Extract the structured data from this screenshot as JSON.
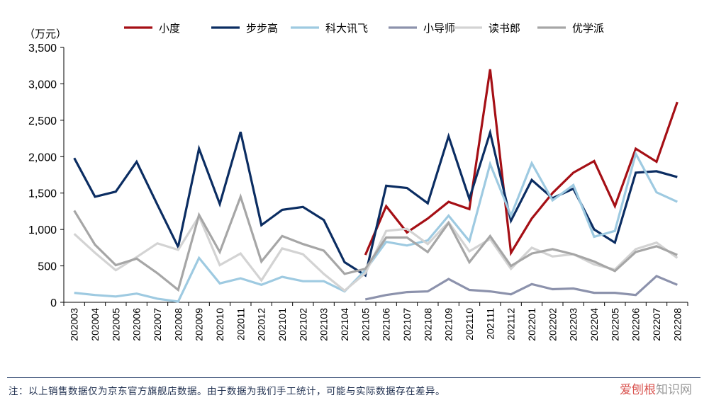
{
  "chart_data": {
    "type": "line",
    "unit_label": "（万元）",
    "ylim": [
      0,
      3500
    ],
    "yticks": [
      "0",
      "500",
      "1,000",
      "1,500",
      "2,000",
      "2,500",
      "3,000",
      "3,500"
    ],
    "ytick_values": [
      0,
      500,
      1000,
      1500,
      2000,
      2500,
      3000,
      3500
    ],
    "grid": false,
    "legend_position": "top",
    "categories": [
      "202003",
      "202004",
      "202005",
      "202006",
      "202007",
      "202008",
      "202009",
      "202010",
      "202011",
      "202012",
      "202101",
      "202102",
      "202103",
      "202104",
      "202105",
      "202106",
      "202107",
      "202108",
      "202109",
      "202110",
      "202111",
      "202112",
      "202201",
      "202202",
      "202203",
      "202204",
      "202205",
      "202206",
      "202207",
      "202208"
    ],
    "series": [
      {
        "name": "小度",
        "color": "#a50f15",
        "values": [
          null,
          null,
          null,
          null,
          null,
          null,
          null,
          null,
          null,
          null,
          null,
          null,
          null,
          null,
          650,
          1320,
          960,
          1150,
          1380,
          1280,
          3200,
          680,
          1150,
          1500,
          1780,
          1940,
          1320,
          2110,
          1930,
          2750
        ]
      },
      {
        "name": "步步高",
        "color": "#0b2d62",
        "values": [
          1980,
          1450,
          1520,
          1930,
          1340,
          760,
          2110,
          1350,
          2340,
          1060,
          1270,
          1310,
          1130,
          550,
          370,
          1600,
          1570,
          1360,
          2280,
          1420,
          2330,
          1120,
          1680,
          1430,
          1560,
          1000,
          820,
          1780,
          1800,
          1720
        ]
      },
      {
        "name": "科大讯飞",
        "color": "#9ecae1",
        "values": [
          130,
          100,
          80,
          120,
          50,
          10,
          610,
          260,
          330,
          240,
          350,
          290,
          290,
          150,
          440,
          830,
          780,
          850,
          1190,
          840,
          1900,
          1190,
          1910,
          1400,
          1610,
          900,
          980,
          2040,
          1510,
          1380
        ]
      },
      {
        "name": "小导师",
        "color": "#8c92ac",
        "values": [
          null,
          null,
          null,
          null,
          null,
          null,
          null,
          null,
          null,
          null,
          null,
          null,
          null,
          null,
          40,
          100,
          140,
          150,
          320,
          170,
          150,
          110,
          250,
          180,
          190,
          130,
          130,
          100,
          360,
          240
        ]
      },
      {
        "name": "读书郎",
        "color": "#d3d3d3",
        "values": [
          940,
          680,
          440,
          620,
          810,
          720,
          1180,
          510,
          670,
          300,
          740,
          660,
          390,
          160,
          400,
          980,
          1010,
          800,
          1100,
          700,
          870,
          460,
          750,
          630,
          660,
          520,
          450,
          730,
          820,
          610
        ]
      },
      {
        "name": "优学派",
        "color": "#a6a6a6",
        "values": [
          1260,
          790,
          510,
          600,
          400,
          170,
          1200,
          690,
          1450,
          560,
          910,
          800,
          710,
          390,
          460,
          890,
          890,
          690,
          1090,
          550,
          910,
          500,
          670,
          730,
          660,
          560,
          430,
          690,
          770,
          650
        ]
      }
    ]
  },
  "footnote": "注：以上销售数据仅为京东官方旗舰店数据。由于数据为我们手工统计，可能与实际数据存在差异。",
  "watermark": {
    "brand": "爱刨根",
    "rest": "知识网"
  }
}
